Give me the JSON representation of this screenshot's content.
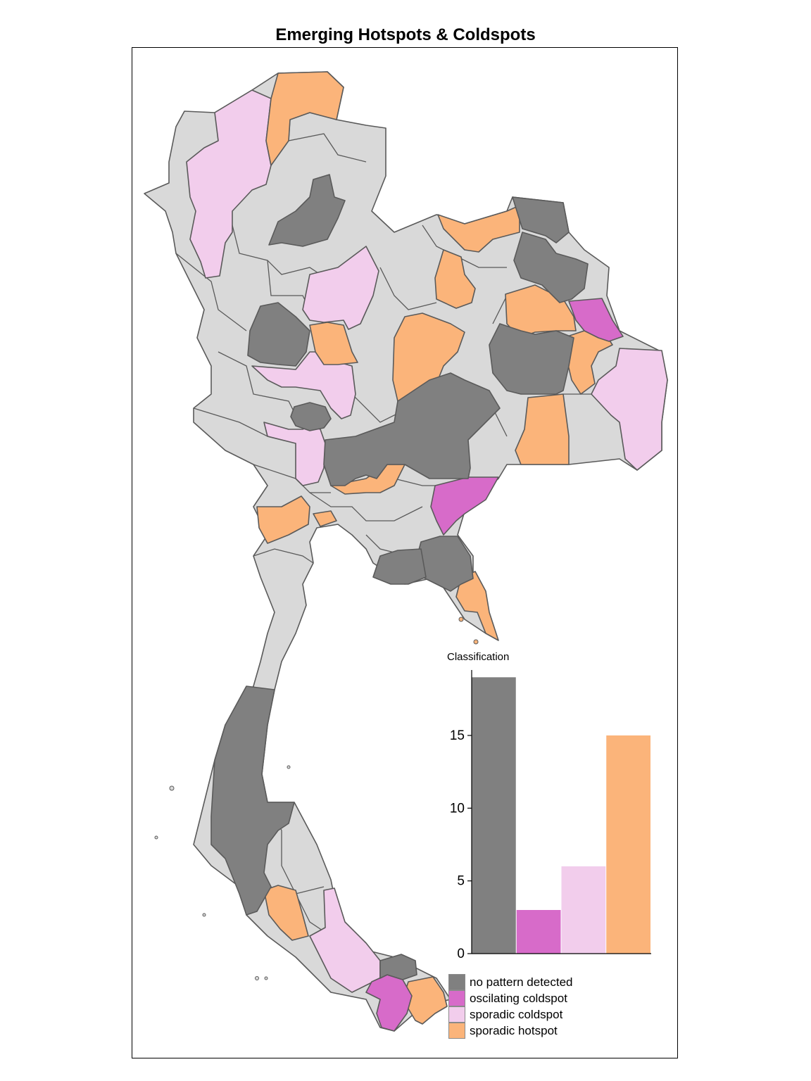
{
  "title": "Emerging Hotspots & Coldspots",
  "colors": {
    "no_pattern": "#808080",
    "oscilating_coldspot": "#d76bc9",
    "sporadic_coldspot": "#f2cdec",
    "sporadic_hotspot": "#fbb47a",
    "background_region": "#d9d9d9",
    "border": "#5a5a5a"
  },
  "legend": {
    "items": [
      {
        "label": "no pattern detected",
        "color": "#808080"
      },
      {
        "label": "oscilating coldspot",
        "color": "#d76bc9"
      },
      {
        "label": "sporadic coldspot",
        "color": "#f2cdec"
      },
      {
        "label": "sporadic hotspot",
        "color": "#fbb47a"
      }
    ]
  },
  "chart_data": {
    "type": "bar",
    "title": "Classification",
    "categories": [
      "no pattern detected",
      "oscilating coldspot",
      "sporadic coldspot",
      "sporadic hotspot"
    ],
    "values": [
      19,
      3,
      6,
      15
    ],
    "colors": [
      "#808080",
      "#d76bc9",
      "#f2cdec",
      "#fbb47a"
    ],
    "ylim": [
      0,
      19.5
    ],
    "yticks": [
      0,
      5,
      10,
      15
    ],
    "ytick_labels": [
      "0",
      "5",
      "10",
      "15"
    ],
    "grid": false
  }
}
